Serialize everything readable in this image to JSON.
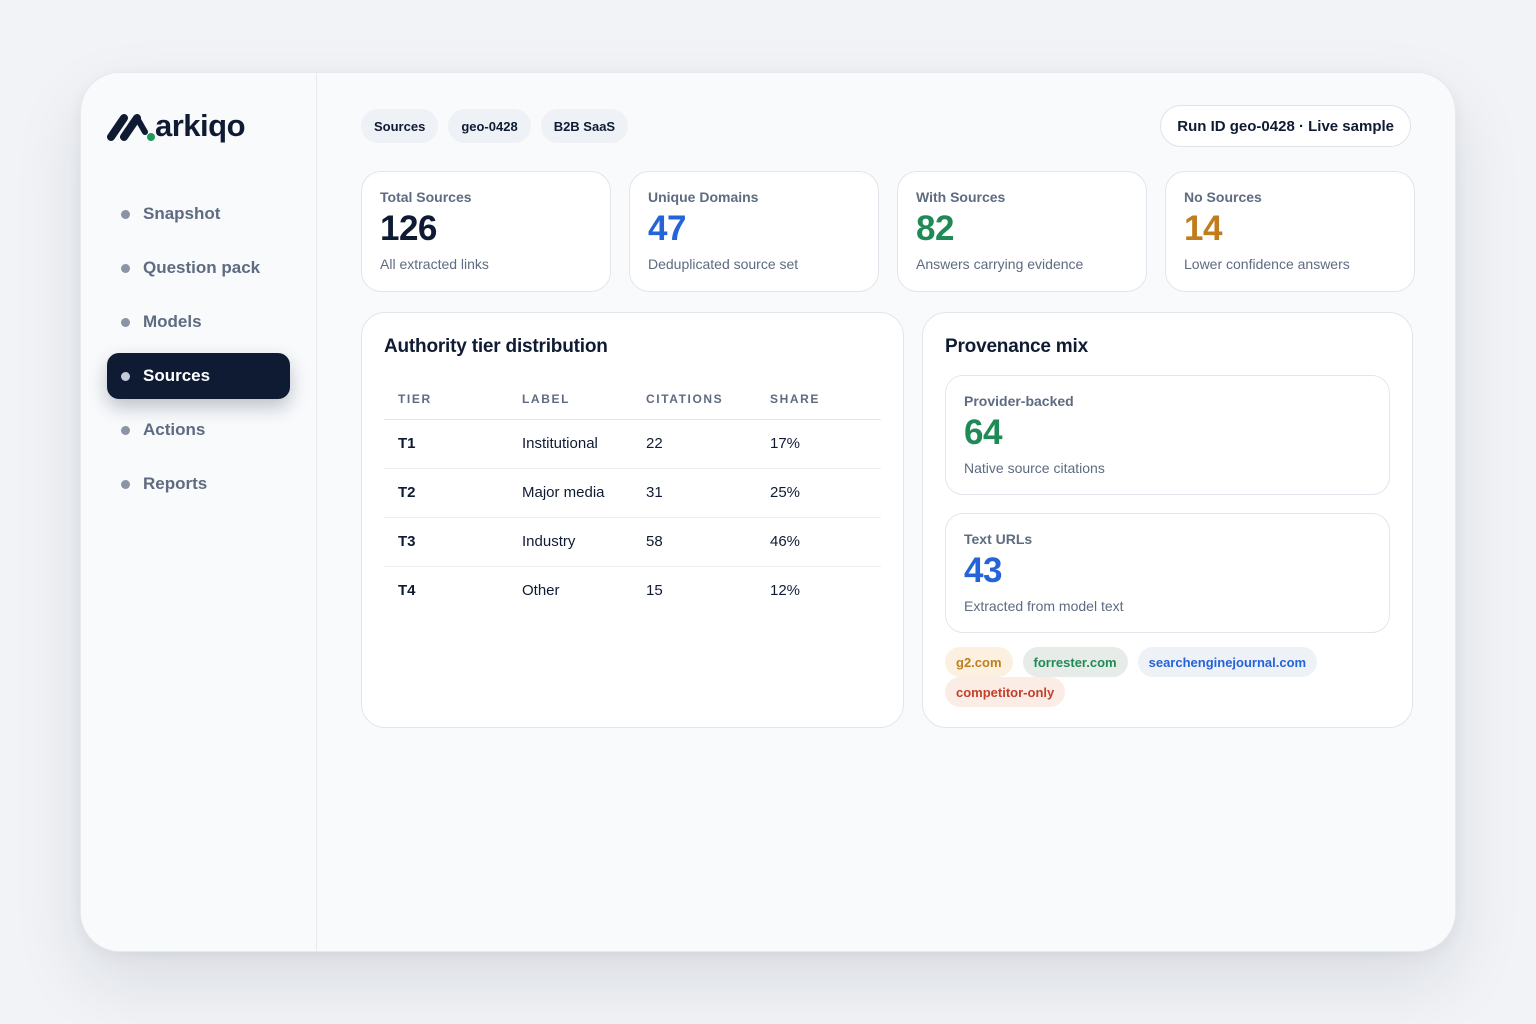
{
  "brand": {
    "name": "arkiqo"
  },
  "nav": {
    "items": [
      {
        "label": "Snapshot",
        "active": false
      },
      {
        "label": "Question pack",
        "active": false
      },
      {
        "label": "Models",
        "active": false
      },
      {
        "label": "Sources",
        "active": true
      },
      {
        "label": "Actions",
        "active": false
      },
      {
        "label": "Reports",
        "active": false
      }
    ]
  },
  "header": {
    "chips": [
      "Sources",
      "geo-0428",
      "B2B SaaS"
    ],
    "run_label": "Run ID geo-0428 · Live sample"
  },
  "stats": [
    {
      "label": "Total Sources",
      "value": "126",
      "sub": "All extracted links",
      "color": "#0f1b33"
    },
    {
      "label": "Unique Domains",
      "value": "47",
      "sub": "Deduplicated source set",
      "color": "#2563d9"
    },
    {
      "label": "With Sources",
      "value": "82",
      "sub": "Answers carrying evidence",
      "color": "#1f8a56"
    },
    {
      "label": "No Sources",
      "value": "14",
      "sub": "Lower confidence answers",
      "color": "#c07d1e"
    }
  ],
  "authority": {
    "title": "Authority tier distribution",
    "columns": [
      "TIER",
      "LABEL",
      "CITATIONS",
      "SHARE"
    ],
    "rows": [
      {
        "tier": "T1",
        "label": "Institutional",
        "citations": "22",
        "share": "17%"
      },
      {
        "tier": "T2",
        "label": "Major media",
        "citations": "31",
        "share": "25%"
      },
      {
        "tier": "T3",
        "label": "Industry",
        "citations": "58",
        "share": "46%"
      },
      {
        "tier": "T4",
        "label": "Other",
        "citations": "15",
        "share": "12%"
      }
    ]
  },
  "provenance": {
    "title": "Provenance mix",
    "cards": [
      {
        "label": "Provider-backed",
        "value": "64",
        "sub": "Native source citations",
        "color": "#1f8a56"
      },
      {
        "label": "Text URLs",
        "value": "43",
        "sub": "Extracted from model text",
        "color": "#2563d9"
      }
    ],
    "tags": [
      {
        "label": "g2.com",
        "color": "#c07d1e",
        "bg": "#fcf1e1"
      },
      {
        "label": "forrester.com",
        "color": "#1f8a56",
        "bg": "#e8ece9"
      },
      {
        "label": "searchenginejournal.com",
        "color": "#2563d9",
        "bg": "#eef1f5"
      },
      {
        "label": "competitor-only",
        "color": "#c2412c",
        "bg": "#fbece6"
      }
    ]
  }
}
